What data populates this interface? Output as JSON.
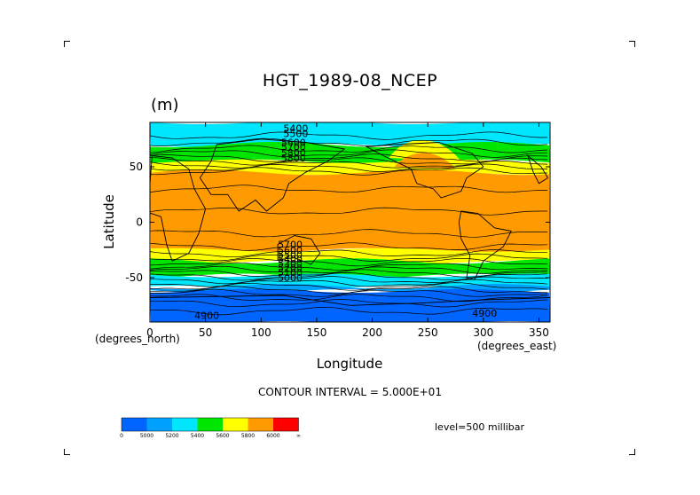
{
  "chart_data": {
    "type": "heatmap",
    "title": "HGT_1989-08_NCEP",
    "units": "(m)",
    "xlabel": "Longitude",
    "ylabel": "Latitude",
    "x_unit_label": "(degrees_east)",
    "y_unit_label": "(degrees_north)",
    "xlim": [
      0,
      360
    ],
    "ylim": [
      -90,
      90
    ],
    "x_ticks": [
      "0",
      "50",
      "100",
      "150",
      "200",
      "250",
      "300",
      "350"
    ],
    "y_ticks": [
      "50",
      "0",
      "-50"
    ],
    "contour_labels": [
      "5400",
      "5500",
      "5600",
      "5700",
      "5800",
      "5800",
      "5700",
      "5600",
      "5500",
      "5400",
      "5300",
      "5200",
      "5100",
      "5000",
      "4900",
      "4900"
    ],
    "contour_interval_text": "CONTOUR INTERVAL = 5.000E+01",
    "level_text": "level=500 millibar",
    "colorbar": {
      "colors": [
        "#0064ff",
        "#00a0ff",
        "#00e6ff",
        "#00e600",
        "#ffff00",
        "#ff9b00",
        "#ff0000"
      ],
      "labels": [
        "0",
        "5000",
        "5200",
        "5400",
        "5600",
        "5800",
        "6000",
        "∞"
      ]
    },
    "bands_by_latitude": [
      {
        "lat_range": [
          70,
          90
        ],
        "value_range": [
          5200,
          5400
        ]
      },
      {
        "lat_range": [
          55,
          70
        ],
        "value_range": [
          5400,
          5600
        ]
      },
      {
        "lat_range": [
          45,
          55
        ],
        "value_range": [
          5600,
          5800
        ]
      },
      {
        "lat_range": [
          -25,
          45
        ],
        "value_range": [
          5800,
          6000
        ]
      },
      {
        "lat_range": [
          -35,
          -25
        ],
        "value_range": [
          5600,
          5800
        ]
      },
      {
        "lat_range": [
          -48,
          -35
        ],
        "value_range": [
          5400,
          5600
        ]
      },
      {
        "lat_range": [
          -58,
          -48
        ],
        "value_range": [
          5200,
          5400
        ]
      },
      {
        "lat_range": [
          -62,
          -58
        ],
        "value_range": [
          5000,
          5200
        ]
      },
      {
        "lat_range": [
          -90,
          -62
        ],
        "value_range": [
          0,
          5000
        ]
      }
    ]
  }
}
